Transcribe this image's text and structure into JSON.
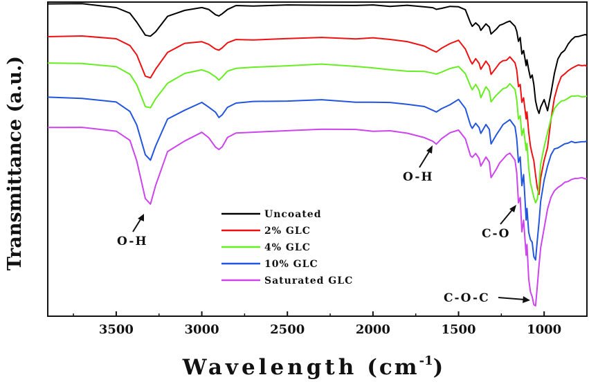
{
  "chart_data": {
    "type": "line",
    "xlabel": "Wavelength",
    "xlabel_unit": "(cm",
    "xlabel_sup": "-1",
    "xlabel_close": ")",
    "ylabel": "Transmittance (a.u.)",
    "xlim": [
      3900,
      750
    ],
    "x_reversed": true,
    "y_ticks_shown": false,
    "grid": false,
    "legend_position": "bottom-center",
    "x_ticks": [
      3500,
      3000,
      2500,
      2000,
      1500,
      1000
    ],
    "x_tick_labels": [
      "3500",
      "3000",
      "2500",
      "2000",
      "1500",
      "1000"
    ],
    "x": [
      3900,
      3700,
      3500,
      3420,
      3380,
      3330,
      3300,
      3270,
      3200,
      3100,
      3000,
      2960,
      2920,
      2900,
      2880,
      2850,
      2800,
      2700,
      2500,
      2300,
      2100,
      2000,
      1900,
      1800,
      1700,
      1650,
      1630,
      1600,
      1550,
      1500,
      1460,
      1430,
      1420,
      1400,
      1380,
      1370,
      1340,
      1320,
      1310,
      1280,
      1260,
      1240,
      1220,
      1200,
      1170,
      1160,
      1150,
      1140,
      1130,
      1120,
      1105,
      1100,
      1090,
      1080,
      1070,
      1060,
      1050,
      1040,
      1030,
      1020,
      1000,
      980,
      960,
      940,
      920,
      900,
      880,
      860,
      840,
      820,
      800,
      780,
      760,
      750
    ],
    "series": [
      {
        "name": "Uncoated",
        "color": "#000000",
        "values": [
          0,
          0,
          -5,
          -14,
          -28,
          -46,
          -48,
          -40,
          -18,
          -10,
          -6,
          -10,
          -16,
          -18,
          -14,
          -8,
          -4,
          -4,
          -3,
          -2,
          -2,
          -2,
          -4,
          -4,
          -5,
          -6,
          -8,
          -6,
          -5,
          -5,
          -10,
          -28,
          -32,
          -28,
          -32,
          -40,
          -30,
          -34,
          -44,
          -36,
          -32,
          -30,
          -28,
          -26,
          -32,
          -40,
          -54,
          -50,
          -74,
          -68,
          -90,
          -80,
          -96,
          -108,
          -104,
          -118,
          -140,
          -152,
          -158,
          -150,
          -140,
          -155,
          -130,
          -100,
          -80,
          -72,
          -68,
          -60,
          -52,
          -48,
          -47,
          -46,
          -46,
          -46
        ]
      },
      {
        "name": "2% GLC",
        "color": "#ee1111",
        "values": [
          0,
          0,
          -5,
          -14,
          -28,
          -57,
          -60,
          -48,
          -24,
          -12,
          -8,
          -12,
          -18,
          -20,
          -18,
          -10,
          -6,
          -5,
          -3,
          -2,
          -4,
          -4,
          -5,
          -8,
          -14,
          -20,
          -24,
          -18,
          -12,
          -6,
          -18,
          -36,
          -40,
          -34,
          -40,
          -48,
          -36,
          -42,
          -56,
          -46,
          -40,
          -36,
          -34,
          -30,
          -38,
          -50,
          -74,
          -70,
          -96,
          -88,
          -120,
          -110,
          -140,
          -160,
          -170,
          -180,
          -200,
          -220,
          -230,
          -205,
          -180,
          -160,
          -120,
          -90,
          -72,
          -60,
          -54,
          -50,
          -46,
          -44,
          -43,
          -43,
          -43,
          -43
        ]
      },
      {
        "name": "4% GLC",
        "color": "#66ee22",
        "values": [
          0,
          0,
          -5,
          -14,
          -30,
          -62,
          -64,
          -52,
          -28,
          -14,
          -8,
          -12,
          -20,
          -24,
          -20,
          -10,
          -6,
          -5,
          -3,
          -2,
          -4,
          -6,
          -8,
          -10,
          -12,
          -14,
          -16,
          -12,
          -6,
          -4,
          -14,
          -34,
          -38,
          -30,
          -38,
          -48,
          -34,
          -40,
          -56,
          -46,
          -40,
          -36,
          -34,
          -30,
          -38,
          -52,
          -80,
          -74,
          -104,
          -94,
          -126,
          -116,
          -150,
          -172,
          -182,
          -194,
          -202,
          -196,
          -176,
          -144,
          -120,
          -100,
          -80,
          -66,
          -58,
          -54,
          -52,
          -50,
          -48,
          -47,
          -47,
          -47,
          -47,
          -47
        ]
      },
      {
        "name": "10% GLC",
        "color": "#2255dd",
        "values": [
          0,
          0,
          -6,
          -20,
          -40,
          -84,
          -90,
          -70,
          -30,
          -18,
          -8,
          -14,
          -22,
          -28,
          -24,
          -14,
          -8,
          -7,
          -5,
          -3,
          -6,
          -6,
          -8,
          -10,
          -14,
          -18,
          -20,
          -16,
          -10,
          -4,
          -16,
          -40,
          -44,
          -36,
          -44,
          -52,
          -40,
          -46,
          -66,
          -54,
          -46,
          -40,
          -36,
          -32,
          -42,
          -58,
          -94,
          -86,
          -128,
          -112,
          -176,
          -160,
          -194,
          -206,
          -210,
          -230,
          -235,
          -205,
          -180,
          -150,
          -120,
          -100,
          -82,
          -74,
          -72,
          -70,
          -68,
          -66,
          -64,
          -64,
          -64,
          -64,
          -64,
          -64
        ]
      },
      {
        "name": "Saturated GLC",
        "color": "#cc44ee",
        "values": [
          0,
          0,
          -6,
          -20,
          -48,
          -103,
          -110,
          -84,
          -36,
          -20,
          -8,
          -14,
          -28,
          -32,
          -28,
          -16,
          -8,
          -7,
          -4,
          -2,
          -4,
          -6,
          -6,
          -8,
          -14,
          -20,
          -24,
          -18,
          -8,
          -4,
          -16,
          -40,
          -44,
          -38,
          -46,
          -56,
          -42,
          -50,
          -72,
          -62,
          -52,
          -46,
          -40,
          -36,
          -48,
          -66,
          -110,
          -102,
          -150,
          -134,
          -184,
          -170,
          -220,
          -238,
          -245,
          -255,
          -258,
          -230,
          -200,
          -175,
          -145,
          -118,
          -100,
          -92,
          -88,
          -84,
          -80,
          -77,
          -75,
          -74,
          -74,
          -74,
          -74,
          -74
        ]
      }
    ],
    "offsets": [
      5,
      52,
      92,
      141,
      184
    ],
    "annotations": {
      "oh_left": "O-H",
      "oh_right": "O-H",
      "co": "C-O",
      "coc": "C-O-C"
    }
  }
}
